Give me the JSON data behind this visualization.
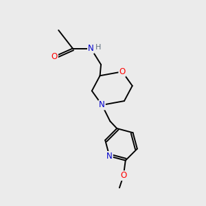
{
  "background_color": "#ebebeb",
  "bond_color": "#000000",
  "atom_colors": {
    "O": "#ff0000",
    "N": "#0000cd",
    "H": "#607080",
    "C": "#000000"
  },
  "figsize": [
    3.0,
    3.0
  ],
  "dpi": 100
}
